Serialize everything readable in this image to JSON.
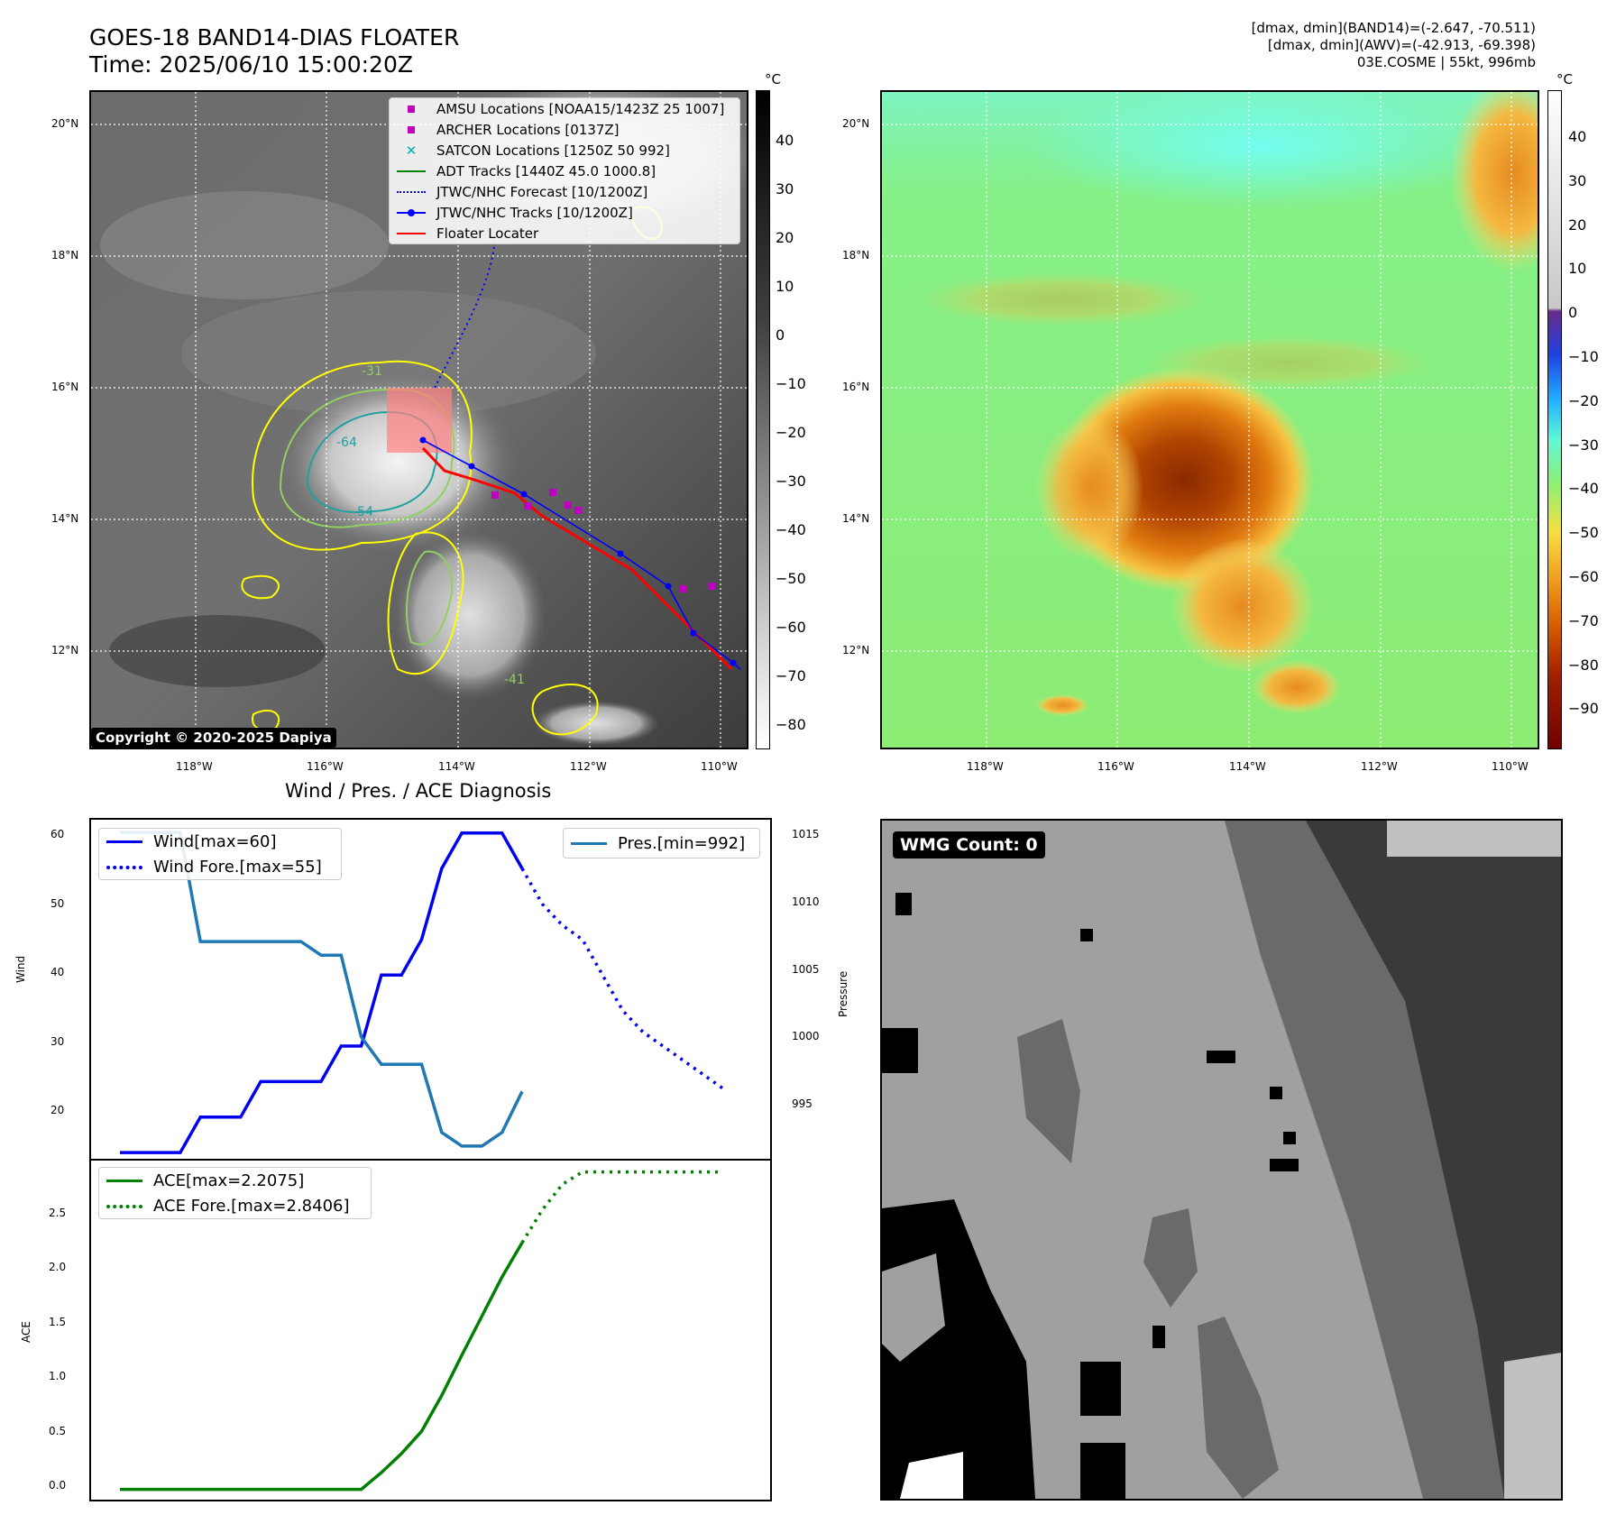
{
  "header": {
    "title_line1": "GOES-18 BAND14-DIAS FLOATER",
    "title_line2": "Time: 2025/06/10 15:00:20Z",
    "info_line1": "[dmax, dmin](BAND14)=(-2.647, -70.511)",
    "info_line2": "[dmax, dmin](AWV)=(-42.913, -69.398)",
    "info_line3": "03E.COSME | 55kt, 996mb"
  },
  "map": {
    "lat_ticks": [
      "20°N",
      "18°N",
      "16°N",
      "14°N",
      "12°N"
    ],
    "lon_ticks": [
      "118°W",
      "116°W",
      "114°W",
      "112°W",
      "110°W"
    ],
    "copyright": "Copyright © 2020-2025 Dapiya",
    "contour_labels": [
      "-31",
      "-64",
      "-54",
      "-41"
    ],
    "legend": [
      {
        "label": "AMSU Locations [NOAA15/1423Z 25 1007]",
        "symbol": "square",
        "color": "#c000c0"
      },
      {
        "label": "ARCHER Locations [0137Z]",
        "symbol": "square",
        "color": "#c000c0"
      },
      {
        "label": "SATCON Locations [1250Z 50 992]",
        "symbol": "x",
        "color": "#00b0b0"
      },
      {
        "label": "ADT Tracks [1440Z 45.0 1000.8]",
        "symbol": "line",
        "color": "#008000"
      },
      {
        "label": "JTWC/NHC Forecast [10/1200Z]",
        "symbol": "dotted",
        "color": "#0000ff"
      },
      {
        "label": "JTWC/NHC Tracks [10/1200Z]",
        "symbol": "line-dot",
        "color": "#0000ff"
      },
      {
        "label": "Floater Locater",
        "symbol": "line",
        "color": "#ff0000"
      }
    ]
  },
  "colorbar_left": {
    "unit": "°C",
    "labels": [
      "40",
      "30",
      "20",
      "10",
      "0",
      "−10",
      "−20",
      "−30",
      "−40",
      "−50",
      "−60",
      "−70",
      "−80"
    ]
  },
  "colorbar_right": {
    "unit": "°C",
    "labels": [
      "40",
      "30",
      "20",
      "10",
      "0",
      "−10",
      "−20",
      "−30",
      "−40",
      "−50",
      "−60",
      "−70",
      "−80",
      "−90"
    ]
  },
  "diagnosis": {
    "title": "Wind / Pres. / ACE Diagnosis",
    "wind_axis_label": "Wind",
    "pressure_axis_label": "Pressure",
    "ace_axis_label": "ACE",
    "wind_ticks": [
      "60",
      "50",
      "40",
      "30",
      "20"
    ],
    "pressure_ticks": [
      "1015",
      "1010",
      "1005",
      "1000",
      "995"
    ],
    "ace_ticks": [
      "2.5",
      "2.0",
      "1.5",
      "1.0",
      "0.5",
      "0.0"
    ],
    "legend_wind": "Wind[max=60]",
    "legend_wind_fore": "Wind Fore.[max=55]",
    "legend_pres": "Pres.[min=992]",
    "legend_ace": "ACE[max=2.2075]",
    "legend_ace_fore": "ACE Fore.[max=2.8406]"
  },
  "wmg": {
    "label": "WMG Count: 0"
  },
  "colors": {
    "wind": "#0000ee",
    "pressure": "#1f77b4",
    "ace": "#008000",
    "floater": "#ff0000"
  },
  "chart_data": [
    {
      "type": "line",
      "title": "Wind / Pres. / ACE Diagnosis",
      "ylabel": "Wind",
      "ylim": [
        14,
        62
      ],
      "series": [
        {
          "name": "Wind[max=60]",
          "x": [
            0,
            1,
            2,
            3,
            4,
            5,
            6,
            7,
            8,
            9,
            10,
            11,
            12,
            13,
            14,
            15,
            16,
            17,
            18,
            19,
            20
          ],
          "values": [
            15,
            15,
            15,
            15,
            20,
            20,
            20,
            25,
            25,
            25,
            25,
            30,
            30,
            40,
            40,
            45,
            55,
            60,
            60,
            60,
            55
          ]
        },
        {
          "name": "Wind Fore.[max=55]",
          "x": [
            20,
            21,
            22,
            23,
            24,
            25,
            26,
            27,
            28,
            29,
            30
          ],
          "values": [
            55,
            50,
            47,
            45,
            40,
            35,
            32,
            30,
            28,
            26,
            24
          ]
        }
      ]
    },
    {
      "type": "line",
      "ylabel": "Pressure",
      "ylim": [
        991,
        1016
      ],
      "series": [
        {
          "name": "Pres.[min=992]",
          "x": [
            0,
            1,
            2,
            3,
            4,
            5,
            6,
            7,
            8,
            9,
            10,
            11,
            12,
            13,
            14,
            15,
            16,
            17,
            18,
            19,
            20
          ],
          "values": [
            1015,
            1015,
            1015,
            1015,
            1007,
            1007,
            1007,
            1007,
            1007,
            1007,
            1006,
            1006,
            1000,
            998,
            998,
            998,
            993,
            992,
            992,
            993,
            996
          ]
        }
      ]
    },
    {
      "type": "line",
      "ylabel": "ACE",
      "ylim": [
        -0.1,
        2.95
      ],
      "series": [
        {
          "name": "ACE[max=2.2075]",
          "x": [
            0,
            1,
            2,
            3,
            4,
            5,
            6,
            7,
            8,
            9,
            10,
            11,
            12,
            13,
            14,
            15,
            16,
            17,
            18,
            19,
            20
          ],
          "values": [
            0,
            0,
            0,
            0,
            0,
            0,
            0,
            0,
            0,
            0,
            0,
            0,
            0,
            0.15,
            0.32,
            0.52,
            0.84,
            1.2,
            1.55,
            1.9,
            2.2075
          ]
        },
        {
          "name": "ACE Fore.[max=2.8406]",
          "x": [
            20,
            21,
            22,
            23,
            24,
            25,
            26,
            27,
            28,
            29,
            30
          ],
          "values": [
            2.2075,
            2.5,
            2.73,
            2.84,
            2.84,
            2.84,
            2.84,
            2.84,
            2.84,
            2.84,
            2.84
          ]
        }
      ]
    }
  ]
}
